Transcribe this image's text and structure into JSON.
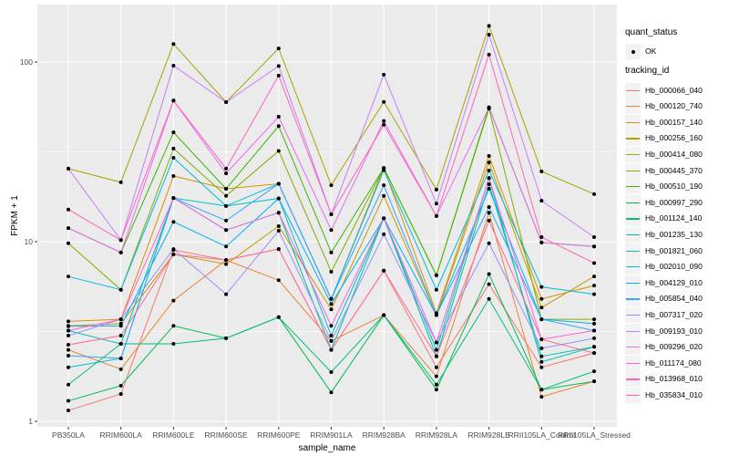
{
  "chart_data": {
    "type": "line",
    "title": "",
    "xlabel": "sample_name",
    "ylabel": "FPKM + 1",
    "y_scale": "log10",
    "y_ticks": [
      1,
      10,
      100
    ],
    "y_minor_breaks": [
      3.1623,
      31.623
    ],
    "ylim": [
      1,
      197
    ],
    "grid": true,
    "panel_bg": "#EBEBEB",
    "grid_color": "#FFFFFF",
    "tick_label_color": "#4D4D4D",
    "point_color": "#000000",
    "categories": [
      "PB350LA",
      "RRIM600LA",
      "RRIM600LE",
      "RRIM600SE",
      "RRIM600PE",
      "RRIM901LA",
      "RRIM928BA",
      "RRIM928LA",
      "RRIM928LE",
      "RRII105LA_Control",
      "RRII105LA_Stressed"
    ],
    "series": [
      {
        "name": "Hb_000066_040",
        "color": "#F8766D",
        "values": [
          1.15,
          1.42,
          9.0,
          7.9,
          9.1,
          2.5,
          6.9,
          2.0,
          5.8,
          2.0,
          2.4
        ]
      },
      {
        "name": "Hb_000120_740",
        "color": "#EA8331",
        "values": [
          2.5,
          1.95,
          4.7,
          7.9,
          6.1,
          2.8,
          3.9,
          1.78,
          14.5,
          1.37,
          1.67
        ]
      },
      {
        "name": "Hb_000157_140",
        "color": "#D89000",
        "values": [
          3.6,
          3.7,
          23.2,
          19.7,
          21.0,
          4.8,
          25.7,
          4.0,
          30.0,
          4.8,
          5.7
        ]
      },
      {
        "name": "Hb_000256_160",
        "color": "#C09B00",
        "values": [
          3.4,
          3.5,
          8.5,
          7.5,
          12.2,
          4.2,
          18.0,
          3.9,
          27.6,
          4.3,
          6.4
        ]
      },
      {
        "name": "Hb_000414_080",
        "color": "#A3A500",
        "values": [
          25.5,
          21.4,
          126.0,
          59.8,
          119.0,
          20.6,
          60.0,
          19.5,
          159.0,
          24.6,
          18.4
        ]
      },
      {
        "name": "Hb_000445_370",
        "color": "#7CAE00",
        "values": [
          9.8,
          5.4,
          33.0,
          18.0,
          32.0,
          6.8,
          25.7,
          6.5,
          55.0,
          3.7,
          3.7
        ]
      },
      {
        "name": "Hb_000510_190",
        "color": "#39B600",
        "values": [
          11.9,
          8.7,
          40.6,
          19.7,
          44.0,
          8.7,
          25.7,
          6.5,
          56.0,
          9.9,
          9.4
        ]
      },
      {
        "name": "Hb_000997_290",
        "color": "#00BB4E",
        "values": [
          1.3,
          1.58,
          3.4,
          2.9,
          3.8,
          1.45,
          3.9,
          1.5,
          6.6,
          1.5,
          1.67
        ]
      },
      {
        "name": "Hb_001124_140",
        "color": "#00BF7D",
        "values": [
          1.6,
          2.7,
          2.7,
          2.9,
          3.8,
          1.88,
          3.9,
          1.6,
          4.8,
          1.5,
          1.9
        ]
      },
      {
        "name": "Hb_001235_130",
        "color": "#00C1A3",
        "values": [
          3.2,
          2.7,
          17.5,
          11.6,
          14.5,
          2.5,
          13.5,
          2.3,
          20.9,
          2.3,
          2.6
        ]
      },
      {
        "name": "Hb_001821_060",
        "color": "#00BFC4",
        "values": [
          2.0,
          2.24,
          17.5,
          15.8,
          17.4,
          3.0,
          13.5,
          2.5,
          22.6,
          2.14,
          2.6
        ]
      },
      {
        "name": "Hb_002010_090",
        "color": "#00BAE0",
        "values": [
          6.4,
          5.4,
          29.3,
          15.8,
          21.0,
          4.8,
          25.0,
          5.4,
          24.9,
          5.6,
          5.1
        ]
      },
      {
        "name": "Hb_004129_010",
        "color": "#00B0F6",
        "values": [
          3.38,
          3.4,
          12.9,
          9.4,
          17.4,
          4.5,
          13.5,
          3.9,
          19.7,
          3.7,
          3.5
        ]
      },
      {
        "name": "Hb_005854_040",
        "color": "#35A2FF",
        "values": [
          2.32,
          2.24,
          17.5,
          13.1,
          21.0,
          4.8,
          20.6,
          3.9,
          15.6,
          3.7,
          3.2
        ]
      },
      {
        "name": "Hb_007317_020",
        "color": "#9590FF",
        "values": [
          3.0,
          3.7,
          9.1,
          5.1,
          11.5,
          2.8,
          11.0,
          2.75,
          9.8,
          2.55,
          2.9
        ]
      },
      {
        "name": "Hb_009193_010",
        "color": "#C77CFF",
        "values": [
          25.5,
          10.2,
          95.5,
          59.8,
          95.0,
          14.2,
          85.0,
          16.3,
          142.0,
          16.9,
          10.6
        ]
      },
      {
        "name": "Hb_009296_020",
        "color": "#E76BF3",
        "values": [
          11.9,
          8.7,
          61.0,
          24.0,
          49.6,
          11.6,
          47.0,
          13.9,
          55.7,
          9.9,
          9.4
        ]
      },
      {
        "name": "Hb_011174_080",
        "color": "#FA62DB",
        "values": [
          3.2,
          3.7,
          17.5,
          11.6,
          14.5,
          3.4,
          13.5,
          2.75,
          22.6,
          2.86,
          3.2
        ]
      },
      {
        "name": "Hb_013968_010",
        "color": "#FF62BC",
        "values": [
          15.1,
          10.2,
          61.0,
          25.5,
          84.0,
          14.2,
          44.7,
          13.9,
          110.0,
          10.6,
          7.6
        ]
      },
      {
        "name": "Hb_035834_010",
        "color": "#FF6A98",
        "values": [
          2.67,
          3.0,
          8.5,
          7.9,
          9.1,
          2.5,
          6.9,
          2.3,
          13.1,
          2.86,
          2.4
        ]
      }
    ],
    "legend_position": "right"
  },
  "legend": {
    "quant_status_title": "quant_status",
    "quant_status_items": [
      "OK"
    ],
    "quant_status_marker": "black-point-icon",
    "tracking_title": "tracking_id"
  }
}
